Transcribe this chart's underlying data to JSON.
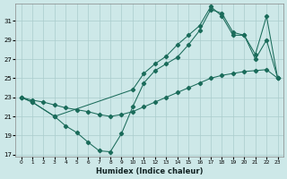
{
  "xlabel": "Humidex (Indice chaleur)",
  "background_color": "#cde8e8",
  "grid_color": "#aacccc",
  "line_color": "#1a6b5a",
  "xlim": [
    -0.5,
    23.5
  ],
  "ylim": [
    16.8,
    32.8
  ],
  "yticks": [
    17,
    19,
    21,
    23,
    25,
    27,
    29,
    31
  ],
  "xticks": [
    0,
    1,
    2,
    3,
    4,
    5,
    6,
    7,
    8,
    9,
    10,
    11,
    12,
    13,
    14,
    15,
    16,
    17,
    18,
    19,
    20,
    21,
    22,
    23
  ],
  "curve1_x": [
    0,
    1,
    3,
    4,
    5,
    6,
    7,
    8,
    9,
    10,
    11,
    12,
    13,
    14,
    15,
    16,
    17,
    18,
    19,
    20,
    21,
    22,
    23
  ],
  "curve1_y": [
    23.0,
    22.5,
    21.0,
    20.0,
    19.3,
    18.3,
    17.4,
    17.3,
    19.2,
    22.0,
    24.5,
    25.8,
    26.5,
    27.2,
    28.5,
    30.0,
    32.2,
    31.8,
    29.8,
    29.5,
    27.0,
    29.0,
    25.0
  ],
  "curve2_x": [
    0,
    1,
    3,
    10,
    11,
    12,
    13,
    14,
    15,
    16,
    17,
    18,
    19,
    20,
    21,
    22,
    23
  ],
  "curve2_y": [
    23.0,
    22.5,
    21.0,
    23.8,
    25.5,
    26.5,
    27.3,
    28.5,
    29.5,
    30.5,
    32.5,
    31.5,
    29.5,
    29.5,
    27.5,
    31.5,
    25.0
  ],
  "curve3_x": [
    0,
    1,
    2,
    3,
    4,
    5,
    6,
    7,
    8,
    9,
    10,
    11,
    12,
    13,
    14,
    15,
    16,
    17,
    18,
    19,
    20,
    21,
    22,
    23
  ],
  "curve3_y": [
    23.0,
    22.7,
    22.5,
    22.2,
    21.9,
    21.7,
    21.5,
    21.2,
    21.0,
    21.2,
    21.5,
    22.0,
    22.5,
    23.0,
    23.5,
    24.0,
    24.5,
    25.0,
    25.3,
    25.5,
    25.7,
    25.8,
    25.9,
    25.0
  ]
}
